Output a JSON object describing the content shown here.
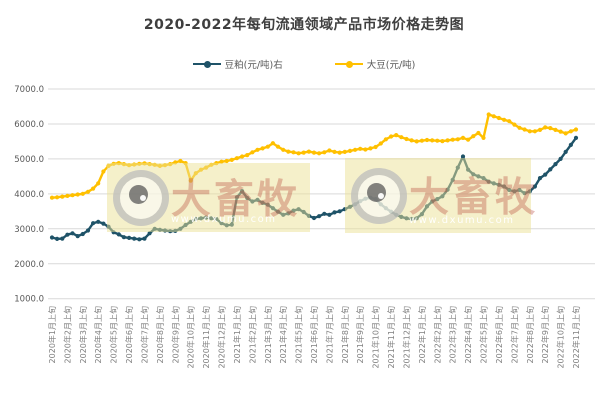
{
  "chart_data": {
    "type": "line",
    "title": "2020-2022年每旬流通领域产品市场价格走势图",
    "legend_position": "top",
    "grid_on": true,
    "grid_color": "#d9d9d9",
    "x_tick_color": "#808080",
    "y_tick_color": "#595959",
    "y_range": [
      1000,
      7000
    ],
    "y_ticks": [
      {
        "value": 7000,
        "label": "7000.0"
      },
      {
        "value": 6000,
        "label": "6000.0"
      },
      {
        "value": 5000,
        "label": "5000.0"
      },
      {
        "value": 4000,
        "label": "4000.0"
      },
      {
        "value": 3000,
        "label": "3000.0"
      },
      {
        "value": 2000,
        "label": "2000.0"
      },
      {
        "value": 1000,
        "label": "1000.0"
      }
    ],
    "ticks_every": 3,
    "categories": [
      "2020年1月上旬",
      "2020年2月上旬",
      "2020年3月上旬",
      "2020年4月上旬",
      "2020年5月上旬",
      "2020年6月上旬",
      "2020年7月上旬",
      "2020年8月上旬",
      "2020年9月上旬",
      "2020年10月上旬",
      "2020年11月上旬",
      "2020年12月上旬",
      "2021年1月上旬",
      "2021年2月上旬",
      "2021年3月上旬",
      "2021年4月上旬",
      "2021年5月上旬",
      "2021年6月上旬",
      "2021年7月上旬",
      "2021年8月上旬",
      "2021年9月上旬",
      "2021年10月上旬",
      "2021年11月上旬",
      "2021年12月上旬",
      "2022年1月上旬",
      "2022年2月上旬",
      "2022年3月上旬",
      "2022年4月上旬",
      "2022年5月上旬",
      "2022年6月上旬",
      "2022年7月上旬",
      "2022年8月上旬",
      "2022年9月上旬",
      "2022年10月上旬",
      "2022年11月上旬"
    ],
    "series": [
      {
        "key": "doupo",
        "name": "豆粕(元/吨)右",
        "color": "#1f5368",
        "values": [
          2750,
          2710,
          2720,
          2830,
          2870,
          2790,
          2850,
          2950,
          3160,
          3200,
          3150,
          3060,
          2900,
          2840,
          2760,
          2740,
          2720,
          2700,
          2720,
          2870,
          3000,
          2970,
          2950,
          2930,
          2940,
          3000,
          3110,
          3200,
          3280,
          3300,
          3320,
          3300,
          3280,
          3160,
          3100,
          3120,
          3900,
          4080,
          3880,
          3780,
          3830,
          3740,
          3690,
          3590,
          3490,
          3400,
          3440,
          3520,
          3560,
          3480,
          3370,
          3310,
          3360,
          3430,
          3400,
          3470,
          3500,
          3560,
          3630,
          3700,
          3790,
          3860,
          3890,
          3850,
          3700,
          3590,
          3490,
          3400,
          3340,
          3300,
          3280,
          3300,
          3420,
          3640,
          3780,
          3850,
          3930,
          4120,
          4400,
          4750,
          5070,
          4690,
          4560,
          4500,
          4450,
          4350,
          4300,
          4260,
          4210,
          4110,
          4070,
          4110,
          4020,
          4070,
          4210,
          4450,
          4550,
          4700,
          4850,
          5000,
          5200,
          5400,
          5600
        ]
      },
      {
        "key": "dadou",
        "name": "大豆(元/吨)",
        "color": "#ffc000",
        "values": [
          3890,
          3900,
          3920,
          3940,
          3960,
          3980,
          4000,
          4060,
          4150,
          4300,
          4640,
          4800,
          4860,
          4880,
          4850,
          4820,
          4840,
          4860,
          4870,
          4850,
          4830,
          4800,
          4820,
          4850,
          4900,
          4940,
          4880,
          4380,
          4590,
          4690,
          4750,
          4830,
          4880,
          4920,
          4940,
          4970,
          5020,
          5070,
          5110,
          5190,
          5260,
          5300,
          5350,
          5450,
          5350,
          5260,
          5210,
          5190,
          5160,
          5180,
          5210,
          5180,
          5160,
          5190,
          5240,
          5200,
          5180,
          5200,
          5230,
          5260,
          5290,
          5270,
          5300,
          5340,
          5440,
          5560,
          5640,
          5680,
          5620,
          5570,
          5530,
          5500,
          5520,
          5540,
          5530,
          5520,
          5510,
          5530,
          5550,
          5560,
          5600,
          5550,
          5650,
          5740,
          5600,
          6270,
          6220,
          6170,
          6120,
          6080,
          5980,
          5890,
          5840,
          5790,
          5790,
          5830,
          5900,
          5880,
          5830,
          5780,
          5730,
          5790,
          5840
        ]
      }
    ]
  },
  "watermark": {
    "text": "大畜牧",
    "url": "www.dxumu.com"
  }
}
